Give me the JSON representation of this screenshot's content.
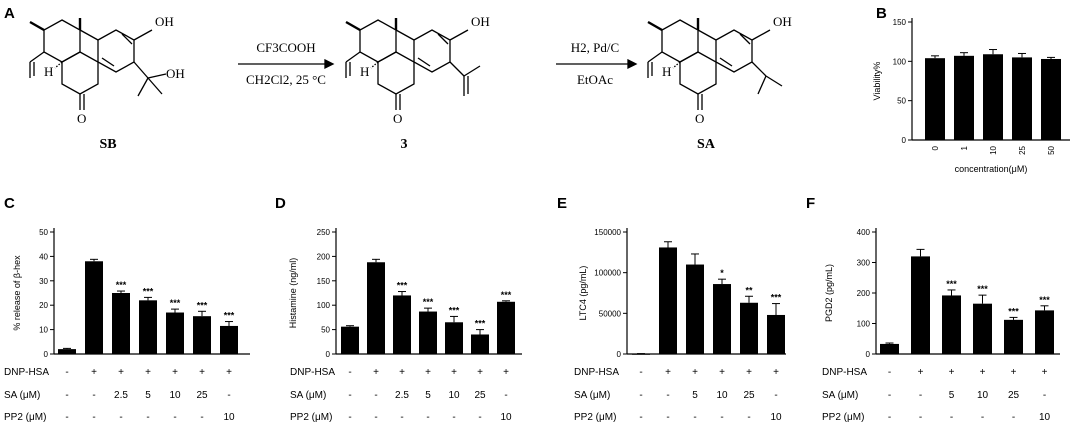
{
  "panels": {
    "A": "A",
    "B": "B",
    "C": "C",
    "D": "D",
    "E": "E",
    "F": "F"
  },
  "scheme": {
    "compounds": [
      "SB",
      "3",
      "SA"
    ],
    "oh": "OH",
    "step1_top": "CF3COOH",
    "step1_bottom": "CH2Cl2, 25 °C",
    "step2_top": "H2, Pd/C",
    "step2_bottom": "EtOAc",
    "h": "H",
    "o": "O"
  },
  "chart_data": [
    {
      "panel": "B",
      "type": "bar",
      "ylabel": "Viability%",
      "xlabel": "concentration(μM)",
      "categories": [
        "0",
        "1",
        "10",
        "25",
        "50"
      ],
      "values": [
        104,
        107,
        109,
        105,
        103
      ],
      "errors": [
        3,
        4,
        6,
        5,
        2
      ],
      "ylim": [
        0,
        150
      ],
      "yticks": [
        0,
        50,
        100,
        150
      ]
    },
    {
      "panel": "C",
      "type": "bar",
      "ylabel": "% release of β-hex",
      "values": [
        2,
        38,
        25,
        22,
        17,
        15.5,
        11.5
      ],
      "errors": [
        0.3,
        0.8,
        0.8,
        1.2,
        1.4,
        2,
        1.8
      ],
      "stars": [
        "",
        "",
        "***",
        "***",
        "***",
        "***",
        "***"
      ],
      "ylim": [
        0,
        50
      ],
      "yticks": [
        0,
        10,
        20,
        30,
        40,
        50
      ],
      "treatments": [
        {
          "label": "DNP-HSA",
          "values": [
            "-",
            "+",
            "+",
            "+",
            "+",
            "+",
            "+"
          ]
        },
        {
          "label": "SA (μM)",
          "values": [
            "-",
            "-",
            "2.5",
            "5",
            "10",
            "25",
            "-"
          ]
        },
        {
          "label": "PP2 (μM)",
          "values": [
            "-",
            "-",
            "-",
            "-",
            "-",
            "-",
            "10"
          ]
        }
      ]
    },
    {
      "panel": "D",
      "type": "bar",
      "ylabel": "Histamine (ng/ml)",
      "values": [
        56,
        188,
        120,
        87,
        65,
        40,
        107
      ],
      "errors": [
        2,
        6,
        8,
        7,
        12,
        10,
        2
      ],
      "stars": [
        "",
        "",
        "***",
        "***",
        "***",
        "***",
        "***"
      ],
      "ylim": [
        0,
        250
      ],
      "yticks": [
        0,
        50,
        100,
        150,
        200,
        250
      ],
      "treatments": [
        {
          "label": "DNP-HSA",
          "values": [
            "-",
            "+",
            "+",
            "+",
            "+",
            "+",
            "+"
          ]
        },
        {
          "label": "SA (μM)",
          "values": [
            "-",
            "-",
            "2.5",
            "5",
            "10",
            "25",
            "-"
          ]
        },
        {
          "label": "PP2 (μM)",
          "values": [
            "-",
            "-",
            "-",
            "-",
            "-",
            "-",
            "10"
          ]
        }
      ]
    },
    {
      "panel": "E",
      "type": "bar",
      "ylabel": "LTC4 (pg/mL)",
      "values": [
        300,
        131000,
        110000,
        86000,
        63000,
        48000
      ],
      "errors": [
        200,
        7000,
        13000,
        6000,
        8000,
        14000
      ],
      "stars": [
        "",
        "",
        "",
        "*",
        "**",
        "***"
      ],
      "ylim": [
        0,
        150000
      ],
      "yticks": [
        0,
        50000,
        100000,
        150000
      ],
      "treatments": [
        {
          "label": "DNP-HSA",
          "values": [
            "-",
            "+",
            "+",
            "+",
            "+",
            "+"
          ]
        },
        {
          "label": "SA (μM)",
          "values": [
            "-",
            "-",
            "5",
            "10",
            "25",
            "-"
          ]
        },
        {
          "label": "PP2 (μM)",
          "values": [
            "-",
            "-",
            "-",
            "-",
            "-",
            "10"
          ]
        }
      ]
    },
    {
      "panel": "F",
      "type": "bar",
      "ylabel": "PGD2 (pg/mL)",
      "values": [
        33,
        320,
        192,
        165,
        112,
        143
      ],
      "errors": [
        3,
        23,
        18,
        28,
        8,
        15
      ],
      "stars": [
        "",
        "",
        "***",
        "***",
        "***",
        "***"
      ],
      "ylim": [
        0,
        400
      ],
      "yticks": [
        0,
        100,
        200,
        300,
        400
      ],
      "treatments": [
        {
          "label": "DNP-HSA",
          "values": [
            "-",
            "+",
            "+",
            "+",
            "+",
            "+"
          ]
        },
        {
          "label": "SA (μM)",
          "values": [
            "-",
            "-",
            "5",
            "10",
            "25",
            "-"
          ]
        },
        {
          "label": "PP2 (μM)",
          "values": [
            "-",
            "-",
            "-",
            "-",
            "-",
            "10"
          ]
        }
      ]
    }
  ]
}
